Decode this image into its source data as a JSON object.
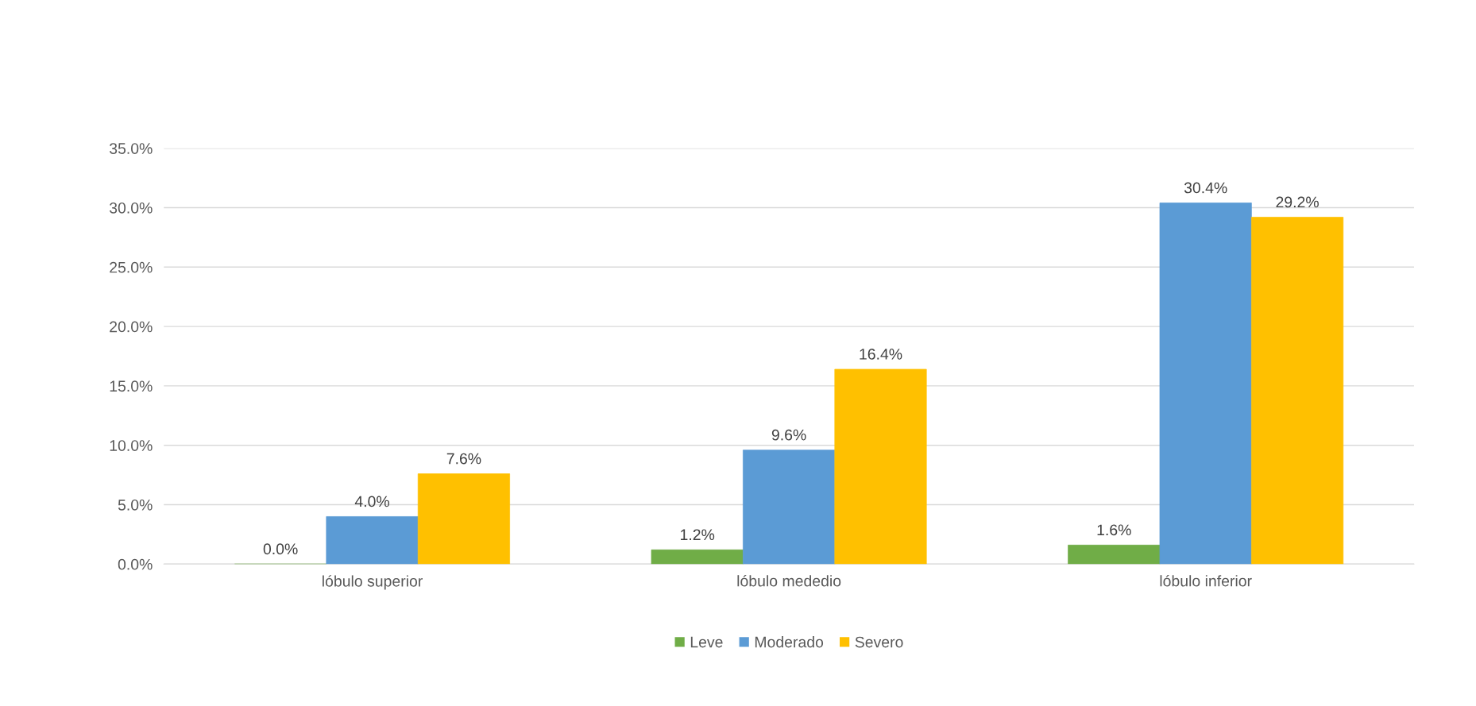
{
  "chart_data": {
    "type": "bar",
    "categories": [
      "lóbulo superior",
      "lóbulo mededio",
      "lóbulo inferior"
    ],
    "series": [
      {
        "name": "Leve",
        "color": "#70ad47",
        "values": [
          0.0,
          1.2,
          1.6
        ],
        "value_labels": [
          "0.0%",
          "1.2%",
          "1.6%"
        ]
      },
      {
        "name": "Moderado",
        "color": "#5b9bd5",
        "values": [
          4.0,
          9.6,
          30.4
        ],
        "value_labels": [
          "4.0%",
          "9.6%",
          "30.4%"
        ]
      },
      {
        "name": "Severo",
        "color": "#ffc000",
        "values": [
          7.6,
          16.4,
          29.2
        ],
        "value_labels": [
          "7.6%",
          "16.4%",
          "29.2%"
        ]
      }
    ],
    "ylim": [
      0,
      35
    ],
    "yticks": [
      {
        "value": 0,
        "label": "0.0%"
      },
      {
        "value": 5,
        "label": "5.0%"
      },
      {
        "value": 10,
        "label": "10.0%"
      },
      {
        "value": 15,
        "label": "15.0%"
      },
      {
        "value": 20,
        "label": "20.0%"
      },
      {
        "value": 25,
        "label": "25.0%"
      },
      {
        "value": 30,
        "label": "30.0%"
      },
      {
        "value": 35,
        "label": "35.0%"
      }
    ],
    "grid": "y",
    "legend": "bottom"
  }
}
